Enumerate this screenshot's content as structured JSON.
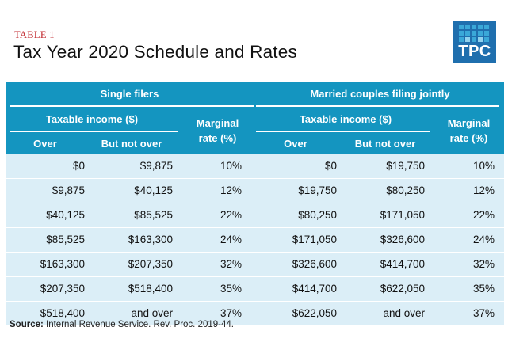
{
  "table_label": "TABLE 1",
  "title": "Tax Year 2020 Schedule and Rates",
  "logo": {
    "text": "TPC",
    "brand_color": "#1f6fae"
  },
  "header": {
    "single_filers": "Single filers",
    "married": "Married couples filing jointly",
    "taxable_income": "Taxable income ($)",
    "marginal": "Marginal",
    "rate": "rate (%)",
    "over": "Over",
    "but_not_over": "But not over"
  },
  "rows": [
    {
      "s_over": "$0",
      "s_not_over": "$9,875",
      "s_rate": "10%",
      "m_over": "$0",
      "m_not_over": "$19,750",
      "m_rate": "10%"
    },
    {
      "s_over": "$9,875",
      "s_not_over": "$40,125",
      "s_rate": "12%",
      "m_over": "$19,750",
      "m_not_over": "$80,250",
      "m_rate": "12%"
    },
    {
      "s_over": "$40,125",
      "s_not_over": "$85,525",
      "s_rate": "22%",
      "m_over": "$80,250",
      "m_not_over": "$171,050",
      "m_rate": "22%"
    },
    {
      "s_over": "$85,525",
      "s_not_over": "$163,300",
      "s_rate": "24%",
      "m_over": "$171,050",
      "m_not_over": "$326,600",
      "m_rate": "24%"
    },
    {
      "s_over": "$163,300",
      "s_not_over": "$207,350",
      "s_rate": "32%",
      "m_over": "$326,600",
      "m_not_over": "$414,700",
      "m_rate": "32%"
    },
    {
      "s_over": "$207,350",
      "s_not_over": "$518,400",
      "s_rate": "35%",
      "m_over": "$414,700",
      "m_not_over": "$622,050",
      "m_rate": "35%"
    },
    {
      "s_over": "$518,400",
      "s_not_over": "and over",
      "s_rate": "37%",
      "m_over": "$622,050",
      "m_not_over": "and over",
      "m_rate": "37%"
    }
  ],
  "source": {
    "label": "Source:",
    "text": " Internal Revenue Service. Rev. Proc. 2019-44."
  },
  "colors": {
    "header_bg": "#1495c0",
    "body_bg": "#dbeef7",
    "label_red": "#c0272d"
  }
}
